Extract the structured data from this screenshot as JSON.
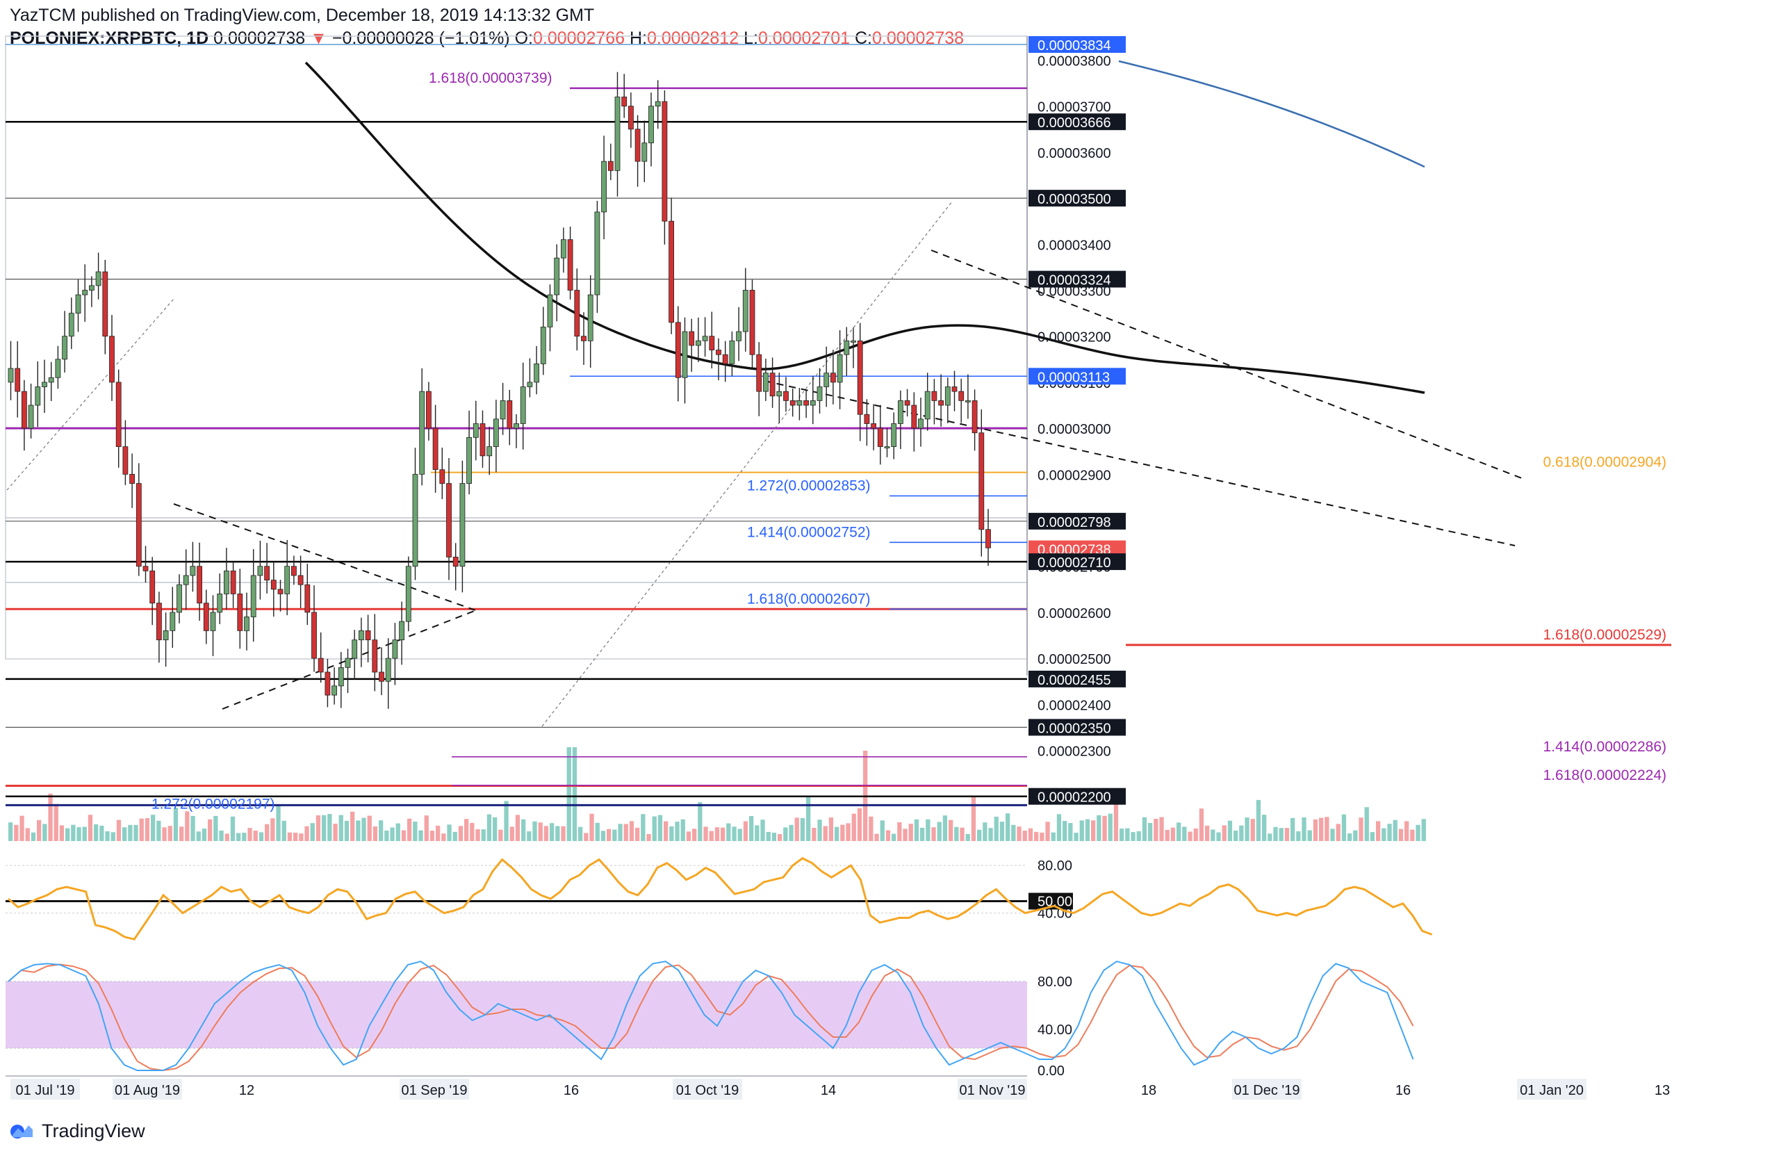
{
  "header": {
    "publish_line": "YazTCM published on TradingView.com, December 18, 2019 14:13:32 GMT",
    "symbol": "POLONIEX:XRPBTC, 1D",
    "last": "0.00002738",
    "change_arrow": "▼",
    "change": "−0.00000028 (−1.01%)",
    "o_label": "O:",
    "o_value": "0.00002766",
    "h_label": "H:",
    "h_value": "0.00002812",
    "l_label": "L:",
    "l_value": "0.00002701",
    "c_label": "C:",
    "c_value": "0.00002738"
  },
  "footer": {
    "brand": "TradingView",
    "logo_icon": "tradingview-logo-icon"
  },
  "colors": {
    "up": "#6ca471",
    "down": "#d03234",
    "purple": "#9c27b0",
    "orange": "#f5a623",
    "blue": "#2962ff",
    "red": "#e53935",
    "ma": "#111111",
    "ma2": "#3b6fb0",
    "vol_up": "#8ccfc5",
    "vol_down": "#f4a3a5",
    "rsi": "#f5a623",
    "stoch_k": "#42a5f5",
    "stoch_d": "#ef7c5a",
    "stoch_band": "#e6ccf5"
  },
  "chart_data": {
    "type": "candlestick",
    "symbol": "POLONIEX:XRPBTC",
    "interval": "1D",
    "y_range": [
      2.19e-05,
      3.86e-05
    ],
    "x_ticks": [
      "01 Jul '19",
      "01 Aug '19",
      "12",
      "01 Sep '19",
      "16",
      "01 Oct '19",
      "14",
      "01 Nov '19",
      "18",
      "01 Dec '19",
      "16",
      "01 Jan '20",
      "13"
    ],
    "price_ticks": [
      "0.00003800",
      "0.00003700",
      "0.00003600",
      "0.00003500",
      "0.00003400",
      "0.00003300",
      "0.00003200",
      "0.00003100",
      "0.00003000",
      "0.00002900",
      "0.00002800",
      "0.00002700",
      "0.00002600",
      "0.00002500",
      "0.00002400",
      "0.00002300",
      "0.00002200"
    ],
    "price_tags": [
      {
        "label": "0.00003834",
        "value": 3.834e-05,
        "color": "#2962ff"
      },
      {
        "label": "0.00003666",
        "value": 3.666e-05,
        "color": "#131722"
      },
      {
        "label": "0.00003500",
        "value": 3.5e-05,
        "color": "#131722"
      },
      {
        "label": "0.00003324",
        "value": 3.324e-05,
        "color": "#131722"
      },
      {
        "label": "0.00003113",
        "value": 3.113e-05,
        "color": "#2962ff"
      },
      {
        "label": "0.00002798",
        "value": 2.798e-05,
        "color": "#131722"
      },
      {
        "label": "0.00002738",
        "value": 2.738e-05,
        "color": "#ef5350"
      },
      {
        "label": "0.00002710",
        "value": 2.71e-05,
        "color": "#131722"
      },
      {
        "label": "0.00002455",
        "value": 2.455e-05,
        "color": "#131722"
      },
      {
        "label": "0.00002350",
        "value": 2.35e-05,
        "color": "#131722"
      },
      {
        "label": "0.00002200",
        "value": 2.2e-05,
        "color": "#131722"
      }
    ],
    "levels": [
      {
        "label": "1.618(0.00003739)",
        "value": 3.739e-05,
        "color": "#9c27b0",
        "text_side": "left"
      },
      {
        "label": "0.618(0.00002904)",
        "value": 2.904e-05,
        "color": "#f5a623",
        "text_side": "right"
      },
      {
        "label": "1.272(0.00002853)",
        "value": 2.853e-05,
        "color": "#2962ff",
        "text_side": "left"
      },
      {
        "label": "1.414(0.00002752)",
        "value": 2.752e-05,
        "color": "#2962ff",
        "text_side": "left"
      },
      {
        "label": "1.618(0.00002607)",
        "value": 2.607e-05,
        "color": "#2962ff",
        "text_side": "left"
      },
      {
        "label": "1.618(0.00002529)",
        "value": 2.529e-05,
        "color": "#e53935",
        "text_side": "right"
      },
      {
        "label": "1.414(0.00002286)",
        "value": 2.286e-05,
        "color": "#9c27b0",
        "text_side": "right"
      },
      {
        "label": "1.618(0.00002224)",
        "value": 2.224e-05,
        "color": "#9c27b0",
        "text_side": "right"
      },
      {
        "label": "1.272(0.00002197)",
        "value": 2.197e-05,
        "color": "#2962ff",
        "text_side": "left"
      }
    ],
    "rsi": {
      "ticks": [
        "80.00",
        "50.00",
        "40.00"
      ],
      "range": [
        10,
        90
      ]
    },
    "stoch_rsi": {
      "ticks": [
        "80.00",
        "40.00",
        "0.00"
      ],
      "range": [
        0,
        100
      ]
    }
  }
}
